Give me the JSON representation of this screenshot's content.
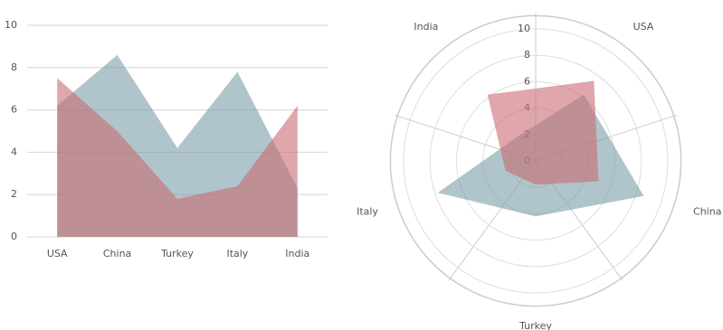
{
  "chart_data": [
    {
      "type": "area",
      "categories": [
        "USA",
        "China",
        "Turkey",
        "Italy",
        "India"
      ],
      "series": [
        {
          "color": "#7b9ea8",
          "values": [
            6.2,
            8.6,
            4.2,
            7.8,
            2.3
          ]
        },
        {
          "color": "#c96b73",
          "values": [
            7.5,
            5,
            1.8,
            2.4,
            6.2
          ]
        }
      ],
      "ylim": [
        0,
        10
      ],
      "yticks": [
        0,
        2,
        4,
        6,
        8,
        10
      ],
      "grid": true
    },
    {
      "type": "radar",
      "categories": [
        "USA",
        "China",
        "Turkey",
        "Italy",
        "India"
      ],
      "series": [
        {
          "color": "#7b9ea8",
          "values": [
            6.2,
            8.6,
            4.2,
            7.8,
            2.3
          ]
        },
        {
          "color": "#c96b73",
          "values": [
            7.5,
            5,
            1.8,
            2.4,
            6.2
          ]
        }
      ],
      "ylim": [
        0,
        11
      ],
      "yticks": [
        0,
        2,
        4,
        6,
        8,
        10
      ],
      "grid": true
    }
  ]
}
